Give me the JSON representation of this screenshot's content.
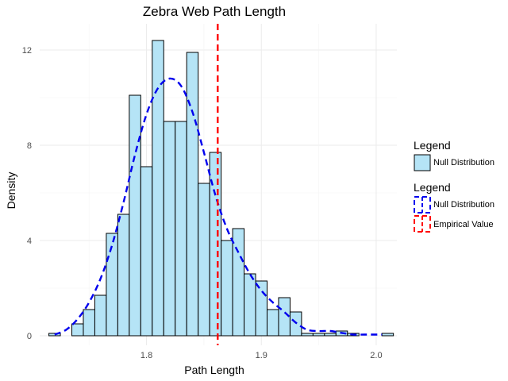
{
  "chart_data": {
    "type": "histogram",
    "title": "Zebra Web Path Length",
    "xlabel": "Path Length",
    "ylabel": "Density",
    "xlim": [
      1.707,
      2.018
    ],
    "ylim": [
      -0.4,
      13.1
    ],
    "xticks": [
      1.8,
      1.9,
      2.0
    ],
    "yticks": [
      0,
      4,
      8,
      12
    ],
    "grid": true,
    "bin_width": 0.01,
    "bins": [
      {
        "x0": 1.715,
        "x1": 1.725,
        "density": 0.1
      },
      {
        "x0": 1.725,
        "x1": 1.735,
        "density": 0.0
      },
      {
        "x0": 1.735,
        "x1": 1.745,
        "density": 0.5
      },
      {
        "x0": 1.745,
        "x1": 1.755,
        "density": 1.1
      },
      {
        "x0": 1.755,
        "x1": 1.765,
        "density": 1.7
      },
      {
        "x0": 1.765,
        "x1": 1.775,
        "density": 4.3
      },
      {
        "x0": 1.775,
        "x1": 1.785,
        "density": 5.1
      },
      {
        "x0": 1.785,
        "x1": 1.795,
        "density": 10.1
      },
      {
        "x0": 1.795,
        "x1": 1.805,
        "density": 7.1
      },
      {
        "x0": 1.805,
        "x1": 1.815,
        "density": 12.4
      },
      {
        "x0": 1.815,
        "x1": 1.825,
        "density": 9.0
      },
      {
        "x0": 1.825,
        "x1": 1.835,
        "density": 9.0
      },
      {
        "x0": 1.835,
        "x1": 1.845,
        "density": 11.9
      },
      {
        "x0": 1.845,
        "x1": 1.855,
        "density": 6.4
      },
      {
        "x0": 1.855,
        "x1": 1.865,
        "density": 7.7
      },
      {
        "x0": 1.865,
        "x1": 1.875,
        "density": 4.0
      },
      {
        "x0": 1.875,
        "x1": 1.885,
        "density": 4.5
      },
      {
        "x0": 1.885,
        "x1": 1.895,
        "density": 2.6
      },
      {
        "x0": 1.895,
        "x1": 1.905,
        "density": 2.3
      },
      {
        "x0": 1.905,
        "x1": 1.915,
        "density": 1.1
      },
      {
        "x0": 1.915,
        "x1": 1.925,
        "density": 1.6
      },
      {
        "x0": 1.925,
        "x1": 1.935,
        "density": 1.0
      },
      {
        "x0": 1.935,
        "x1": 1.945,
        "density": 0.1
      },
      {
        "x0": 1.945,
        "x1": 1.955,
        "density": 0.1
      },
      {
        "x0": 1.955,
        "x1": 1.965,
        "density": 0.1
      },
      {
        "x0": 1.965,
        "x1": 1.975,
        "density": 0.2
      },
      {
        "x0": 1.975,
        "x1": 1.985,
        "density": 0.1
      },
      {
        "x0": 1.985,
        "x1": 1.995,
        "density": 0.0
      },
      {
        "x0": 1.995,
        "x1": 2.005,
        "density": 0.0
      },
      {
        "x0": 2.005,
        "x1": 2.015,
        "density": 0.1
      }
    ],
    "density_curve": {
      "name": "Null Distribution",
      "color": "#0000ee",
      "style": "dashed",
      "points": [
        [
          1.72,
          0.05
        ],
        [
          1.73,
          0.25
        ],
        [
          1.74,
          0.7
        ],
        [
          1.75,
          1.4
        ],
        [
          1.76,
          2.4
        ],
        [
          1.77,
          3.8
        ],
        [
          1.78,
          5.6
        ],
        [
          1.79,
          7.6
        ],
        [
          1.8,
          9.3
        ],
        [
          1.81,
          10.4
        ],
        [
          1.82,
          10.8
        ],
        [
          1.83,
          10.5
        ],
        [
          1.84,
          9.4
        ],
        [
          1.85,
          7.7
        ],
        [
          1.86,
          5.9
        ],
        [
          1.87,
          4.5
        ],
        [
          1.88,
          3.5
        ],
        [
          1.89,
          2.6
        ],
        [
          1.9,
          1.9
        ],
        [
          1.91,
          1.4
        ],
        [
          1.92,
          1.0
        ],
        [
          1.93,
          0.55
        ],
        [
          1.94,
          0.25
        ],
        [
          1.95,
          0.2
        ],
        [
          1.96,
          0.2
        ],
        [
          1.97,
          0.12
        ],
        [
          1.98,
          0.05
        ],
        [
          1.99,
          0.05
        ],
        [
          2.0,
          0.05
        ],
        [
          2.005,
          0.05
        ]
      ]
    },
    "empirical_value": {
      "name": "Empirical Value",
      "x": 1.862,
      "color": "#ff0000",
      "style": "dashed"
    },
    "colors": {
      "bar_fill": "#b5e4f6",
      "bar_stroke": "#000000",
      "grid": "#ebebeb"
    },
    "legend_placement": "right",
    "legends": [
      {
        "title": "Legend",
        "entries": [
          {
            "label": "Null Distribution",
            "kind": "fill"
          }
        ]
      },
      {
        "title": "Legend",
        "entries": [
          {
            "label": "Null Distribution",
            "kind": "line-blue"
          },
          {
            "label": "Empirical Value",
            "kind": "line-red"
          }
        ]
      }
    ]
  }
}
